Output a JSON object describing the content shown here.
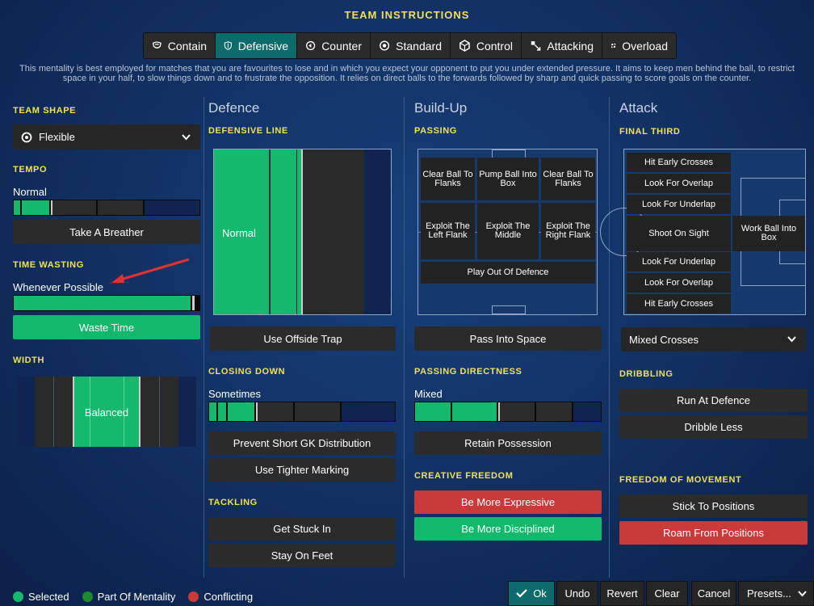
{
  "title": "TEAM INSTRUCTIONS",
  "tabs": [
    {
      "label": "Contain"
    },
    {
      "label": "Defensive"
    },
    {
      "label": "Counter"
    },
    {
      "label": "Standard"
    },
    {
      "label": "Control"
    },
    {
      "label": "Attacking"
    },
    {
      "label": "Overload"
    }
  ],
  "description": "This mentality is best employed for matches that you are favourites to lose and in which you expect your opponent to put you under extended pressure. It aims to keep men behind the ball, to restrict space in your half, to slow things down and to frustrate the opposition. It relies on direct balls to the forwards followed by sharp and quick passing to score goals on the counter.",
  "left": {
    "team_shape": {
      "header": "TEAM SHAPE",
      "value": "Flexible"
    },
    "tempo": {
      "header": "TEMPO",
      "value": "Normal",
      "button": "Take A Breather"
    },
    "time_wasting": {
      "header": "TIME WASTING",
      "value": "Whenever Possible",
      "button": "Waste Time"
    },
    "width": {
      "header": "WIDTH",
      "value": "Balanced"
    }
  },
  "defence": {
    "title": "Defence",
    "line_header": "DEFENSIVE LINE",
    "line_value": "Normal",
    "offside": "Use Offside Trap",
    "closing_header": "CLOSING DOWN",
    "closing_value": "Sometimes",
    "prevent": "Prevent Short GK Distribution",
    "tighter": "Use Tighter Marking",
    "tackling_header": "TACKLING",
    "stuck": "Get Stuck In",
    "feet": "Stay On Feet"
  },
  "buildup": {
    "title": "Build-Up",
    "passing_header": "PASSING",
    "cells": [
      "Clear Ball To Flanks",
      "Pump Ball Into Box",
      "Clear Ball To Flanks",
      "Exploit The Left Flank",
      "Exploit The Middle",
      "Exploit The Right Flank",
      "Play Out Of Defence"
    ],
    "space": "Pass Into Space",
    "directness_header": "PASSING DIRECTNESS",
    "directness_value": "Mixed",
    "retain": "Retain Possession",
    "creative_header": "CREATIVE FREEDOM",
    "expressive": "Be More Expressive",
    "disciplined": "Be More Disciplined"
  },
  "attack": {
    "title": "Attack",
    "final_header": "FINAL THIRD",
    "left_items": [
      "Hit Early Crosses",
      "Look For Overlap",
      "Look For Underlap",
      "Shoot On Sight",
      "Look For Underlap",
      "Look For Overlap",
      "Hit Early Crosses"
    ],
    "work_ball": "Work Ball Into Box",
    "crosses": "Mixed Crosses",
    "dribbling_header": "DRIBBLING",
    "run": "Run At Defence",
    "dribble": "Dribble Less",
    "freedom_header": "FREEDOM OF MOVEMENT",
    "stick": "Stick To Positions",
    "roam": "Roam From Positions"
  },
  "legend": [
    {
      "label": "Selected",
      "color": "#14b96e"
    },
    {
      "label": "Part Of Mentality",
      "color": "#1f8a2e"
    },
    {
      "label": "Conflicting",
      "color": "#c93a3a"
    }
  ],
  "footer": {
    "ok": "Ok",
    "undo": "Undo",
    "revert": "Revert",
    "clear": "Clear",
    "cancel": "Cancel",
    "presets": "Presets..."
  }
}
